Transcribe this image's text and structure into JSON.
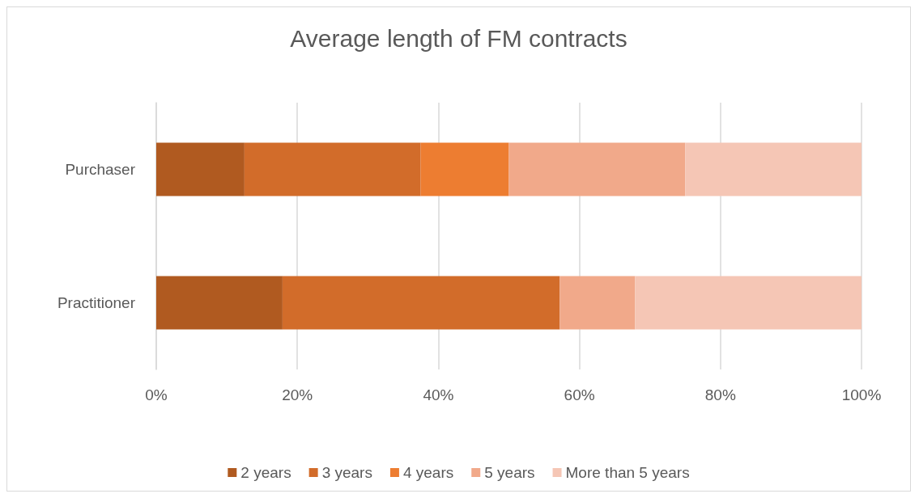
{
  "chart_data": {
    "type": "bar",
    "title": "Average length of FM contracts",
    "orientation": "horizontal",
    "stacked": true,
    "categories": [
      "Purchaser",
      "Practitioner"
    ],
    "series": [
      {
        "name": "2 years",
        "color": "#b05a20",
        "values": [
          12.5,
          17.9
        ]
      },
      {
        "name": "3 years",
        "color": "#d26c2a",
        "values": [
          25,
          39.3
        ]
      },
      {
        "name": "4 years",
        "color": "#ed7d31",
        "values": [
          12.5,
          0
        ]
      },
      {
        "name": "5 years",
        "color": "#f1a98a",
        "values": [
          25,
          10.7
        ]
      },
      {
        "name": "More than 5 years",
        "color": "#f5c6b5",
        "values": [
          25,
          32.1
        ]
      }
    ],
    "xlim": [
      0,
      100
    ],
    "xticks": [
      {
        "value": 0,
        "label": "0%"
      },
      {
        "value": 20,
        "label": "20%"
      },
      {
        "value": 40,
        "label": "40%"
      },
      {
        "value": 60,
        "label": "60%"
      },
      {
        "value": 80,
        "label": "80%"
      },
      {
        "value": 100,
        "label": "100%"
      }
    ],
    "grid": "x",
    "legend": "bottom"
  }
}
